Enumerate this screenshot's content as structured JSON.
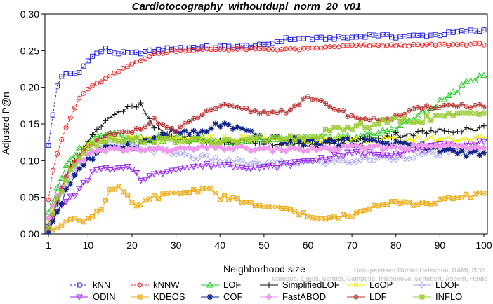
{
  "chart_data": {
    "type": "line",
    "title": "Cardiotocography_withoutdupl_norm_20_v01",
    "xlabel": "Neighborhood size",
    "ylabel": "Adjusted P@n",
    "xlim": [
      1,
      100
    ],
    "ylim": [
      0,
      0.3
    ],
    "xticks": [
      1,
      10,
      20,
      30,
      40,
      50,
      60,
      70,
      80,
      90,
      100
    ],
    "yticks": [
      "0.00",
      "0.05",
      "0.10",
      "0.15",
      "0.20",
      "0.25",
      "0.30"
    ],
    "grid": false,
    "legend_position": "bottom",
    "credit": [
      "Unsupervised Outlier Detection. DAMI, 2015.",
      "Campos, Zimek, Sander, Campello, Micenkova, Schubert, Assent, Houle"
    ],
    "series": [
      {
        "name": "kNN",
        "color": "#2222dd",
        "marker": "square",
        "dashed": true,
        "knots": [
          [
            1,
            0.12
          ],
          [
            2,
            0.162
          ],
          [
            3,
            0.202
          ],
          [
            4,
            0.216
          ],
          [
            6,
            0.218
          ],
          [
            8,
            0.22
          ],
          [
            10,
            0.238
          ],
          [
            12,
            0.246
          ],
          [
            14,
            0.252
          ],
          [
            16,
            0.247
          ],
          [
            20,
            0.246
          ],
          [
            25,
            0.25
          ],
          [
            30,
            0.254
          ],
          [
            40,
            0.255
          ],
          [
            50,
            0.257
          ],
          [
            55,
            0.266
          ],
          [
            60,
            0.266
          ],
          [
            70,
            0.268
          ],
          [
            75,
            0.272
          ],
          [
            80,
            0.269
          ],
          [
            90,
            0.272
          ],
          [
            95,
            0.276
          ],
          [
            100,
            0.278
          ]
        ],
        "noise": 0.002
      },
      {
        "name": "kNNW",
        "color": "#ee2222",
        "marker": "circle",
        "dashed": true,
        "knots": [
          [
            1,
            0.048
          ],
          [
            2,
            0.087
          ],
          [
            3,
            0.11
          ],
          [
            5,
            0.145
          ],
          [
            8,
            0.185
          ],
          [
            10,
            0.198
          ],
          [
            15,
            0.215
          ],
          [
            20,
            0.232
          ],
          [
            25,
            0.245
          ],
          [
            30,
            0.25
          ],
          [
            40,
            0.252
          ],
          [
            50,
            0.252
          ],
          [
            60,
            0.252
          ],
          [
            65,
            0.255
          ],
          [
            70,
            0.257
          ],
          [
            80,
            0.257
          ],
          [
            90,
            0.258
          ],
          [
            100,
            0.259
          ]
        ],
        "noise": 0.0012
      },
      {
        "name": "LOF",
        "color": "#22cc22",
        "marker": "triangle-up",
        "dashed": false,
        "knots": [
          [
            1,
            0.03
          ],
          [
            3,
            0.06
          ],
          [
            5,
            0.09
          ],
          [
            7,
            0.11
          ],
          [
            10,
            0.125
          ],
          [
            12,
            0.135
          ],
          [
            15,
            0.14
          ],
          [
            20,
            0.13
          ],
          [
            30,
            0.13
          ],
          [
            40,
            0.128
          ],
          [
            50,
            0.128
          ],
          [
            60,
            0.128
          ],
          [
            70,
            0.132
          ],
          [
            75,
            0.135
          ],
          [
            80,
            0.145
          ],
          [
            85,
            0.16
          ],
          [
            90,
            0.18
          ],
          [
            95,
            0.2
          ],
          [
            100,
            0.22
          ]
        ],
        "noise": 0.004
      },
      {
        "name": "SimplifiedLOF",
        "color": "#111111",
        "marker": "plus",
        "dashed": false,
        "knots": [
          [
            1,
            0.01
          ],
          [
            3,
            0.045
          ],
          [
            5,
            0.08
          ],
          [
            8,
            0.11
          ],
          [
            10,
            0.125
          ],
          [
            13,
            0.15
          ],
          [
            16,
            0.165
          ],
          [
            20,
            0.172
          ],
          [
            22,
            0.175
          ],
          [
            25,
            0.145
          ],
          [
            30,
            0.13
          ],
          [
            40,
            0.125
          ],
          [
            50,
            0.125
          ],
          [
            60,
            0.12
          ],
          [
            70,
            0.128
          ],
          [
            80,
            0.135
          ],
          [
            90,
            0.14
          ],
          [
            100,
            0.145
          ]
        ],
        "noise": 0.004
      },
      {
        "name": "LoOP",
        "color": "#eeee00",
        "marker": "x",
        "dashed": false,
        "knots": [
          [
            1,
            0.02
          ],
          [
            3,
            0.05
          ],
          [
            6,
            0.09
          ],
          [
            10,
            0.12
          ],
          [
            15,
            0.13
          ],
          [
            20,
            0.13
          ],
          [
            30,
            0.128
          ],
          [
            40,
            0.13
          ],
          [
            50,
            0.13
          ],
          [
            60,
            0.128
          ],
          [
            70,
            0.128
          ],
          [
            80,
            0.128
          ],
          [
            90,
            0.13
          ],
          [
            100,
            0.13
          ]
        ],
        "noise": 0.004
      },
      {
        "name": "LDOF",
        "color": "#aaaaee",
        "marker": "diamond",
        "dashed": false,
        "knots": [
          [
            1,
            0.01
          ],
          [
            3,
            0.04
          ],
          [
            6,
            0.08
          ],
          [
            10,
            0.105
          ],
          [
            15,
            0.12
          ],
          [
            20,
            0.12
          ],
          [
            30,
            0.11
          ],
          [
            40,
            0.1
          ],
          [
            50,
            0.095
          ],
          [
            60,
            0.098
          ],
          [
            70,
            0.1
          ],
          [
            80,
            0.105
          ],
          [
            90,
            0.11
          ],
          [
            100,
            0.115
          ]
        ],
        "noise": 0.004
      },
      {
        "name": "ODIN",
        "color": "#9922ee",
        "marker": "triangle-down",
        "dashed": false,
        "knots": [
          [
            1,
            0.01
          ],
          [
            3,
            0.03
          ],
          [
            5,
            0.045
          ],
          [
            8,
            0.06
          ],
          [
            10,
            0.075
          ],
          [
            12,
            0.09
          ],
          [
            15,
            0.087
          ],
          [
            20,
            0.09
          ],
          [
            22,
            0.075
          ],
          [
            30,
            0.09
          ],
          [
            40,
            0.095
          ],
          [
            50,
            0.09
          ],
          [
            60,
            0.1
          ],
          [
            70,
            0.11
          ],
          [
            80,
            0.11
          ],
          [
            90,
            0.12
          ],
          [
            100,
            0.125
          ]
        ],
        "noise": 0.003
      },
      {
        "name": "KDEOS",
        "color": "#eeaa11",
        "marker": "square-x",
        "dashed": false,
        "knots": [
          [
            1,
            0.005
          ],
          [
            3,
            0.01
          ],
          [
            5,
            0.02
          ],
          [
            8,
            0.018
          ],
          [
            10,
            0.02
          ],
          [
            13,
            0.035
          ],
          [
            15,
            0.06
          ],
          [
            17,
            0.062
          ],
          [
            19,
            0.05
          ],
          [
            20,
            0.04
          ],
          [
            22,
            0.04
          ],
          [
            25,
            0.05
          ],
          [
            30,
            0.055
          ],
          [
            35,
            0.06
          ],
          [
            37,
            0.065
          ],
          [
            40,
            0.05
          ],
          [
            45,
            0.045
          ],
          [
            50,
            0.035
          ],
          [
            55,
            0.035
          ],
          [
            60,
            0.025
          ],
          [
            62,
            0.018
          ],
          [
            65,
            0.022
          ],
          [
            70,
            0.025
          ],
          [
            75,
            0.04
          ],
          [
            80,
            0.045
          ],
          [
            85,
            0.04
          ],
          [
            90,
            0.045
          ],
          [
            95,
            0.05
          ],
          [
            100,
            0.057
          ]
        ],
        "noise": 0.003
      },
      {
        "name": "COF",
        "color": "#112288",
        "marker": "star",
        "dashed": false,
        "knots": [
          [
            1,
            0.005
          ],
          [
            3,
            0.03
          ],
          [
            5,
            0.06
          ],
          [
            8,
            0.09
          ],
          [
            10,
            0.1
          ],
          [
            15,
            0.12
          ],
          [
            20,
            0.12
          ],
          [
            25,
            0.13
          ],
          [
            30,
            0.14
          ],
          [
            35,
            0.135
          ],
          [
            40,
            0.15
          ],
          [
            45,
            0.14
          ],
          [
            50,
            0.13
          ],
          [
            60,
            0.125
          ],
          [
            70,
            0.125
          ],
          [
            80,
            0.125
          ],
          [
            90,
            0.115
          ],
          [
            100,
            0.108
          ]
        ],
        "noise": 0.005
      },
      {
        "name": "FastABOD",
        "color": "#ee99ee",
        "marker": "diamond-filled",
        "dashed": false,
        "knots": [
          [
            1,
            0.02
          ],
          [
            5,
            0.08
          ],
          [
            10,
            0.11
          ],
          [
            15,
            0.115
          ],
          [
            20,
            0.115
          ],
          [
            30,
            0.115
          ],
          [
            40,
            0.118
          ],
          [
            50,
            0.115
          ],
          [
            60,
            0.115
          ],
          [
            70,
            0.118
          ],
          [
            80,
            0.118
          ],
          [
            90,
            0.12
          ],
          [
            100,
            0.12
          ]
        ],
        "noise": 0.003
      },
      {
        "name": "LDF",
        "color": "#bb3333",
        "marker": "circle-plus",
        "dashed": false,
        "knots": [
          [
            1,
            0.01
          ],
          [
            3,
            0.045
          ],
          [
            6,
            0.09
          ],
          [
            10,
            0.12
          ],
          [
            15,
            0.135
          ],
          [
            20,
            0.14
          ],
          [
            25,
            0.155
          ],
          [
            30,
            0.14
          ],
          [
            35,
            0.16
          ],
          [
            40,
            0.175
          ],
          [
            45,
            0.17
          ],
          [
            50,
            0.165
          ],
          [
            55,
            0.168
          ],
          [
            60,
            0.185
          ],
          [
            65,
            0.175
          ],
          [
            70,
            0.16
          ],
          [
            75,
            0.155
          ],
          [
            80,
            0.16
          ],
          [
            85,
            0.17
          ],
          [
            90,
            0.175
          ],
          [
            100,
            0.175
          ]
        ],
        "noise": 0.003
      },
      {
        "name": "INFLO",
        "color": "#99cc33",
        "marker": "square-star",
        "dashed": false,
        "knots": [
          [
            1,
            0.01
          ],
          [
            3,
            0.045
          ],
          [
            6,
            0.09
          ],
          [
            10,
            0.12
          ],
          [
            15,
            0.13
          ],
          [
            20,
            0.128
          ],
          [
            30,
            0.128
          ],
          [
            40,
            0.125
          ],
          [
            50,
            0.13
          ],
          [
            60,
            0.13
          ],
          [
            65,
            0.14
          ],
          [
            70,
            0.145
          ],
          [
            75,
            0.15
          ],
          [
            80,
            0.155
          ],
          [
            85,
            0.155
          ],
          [
            90,
            0.16
          ],
          [
            100,
            0.165
          ]
        ],
        "noise": 0.004
      }
    ]
  }
}
